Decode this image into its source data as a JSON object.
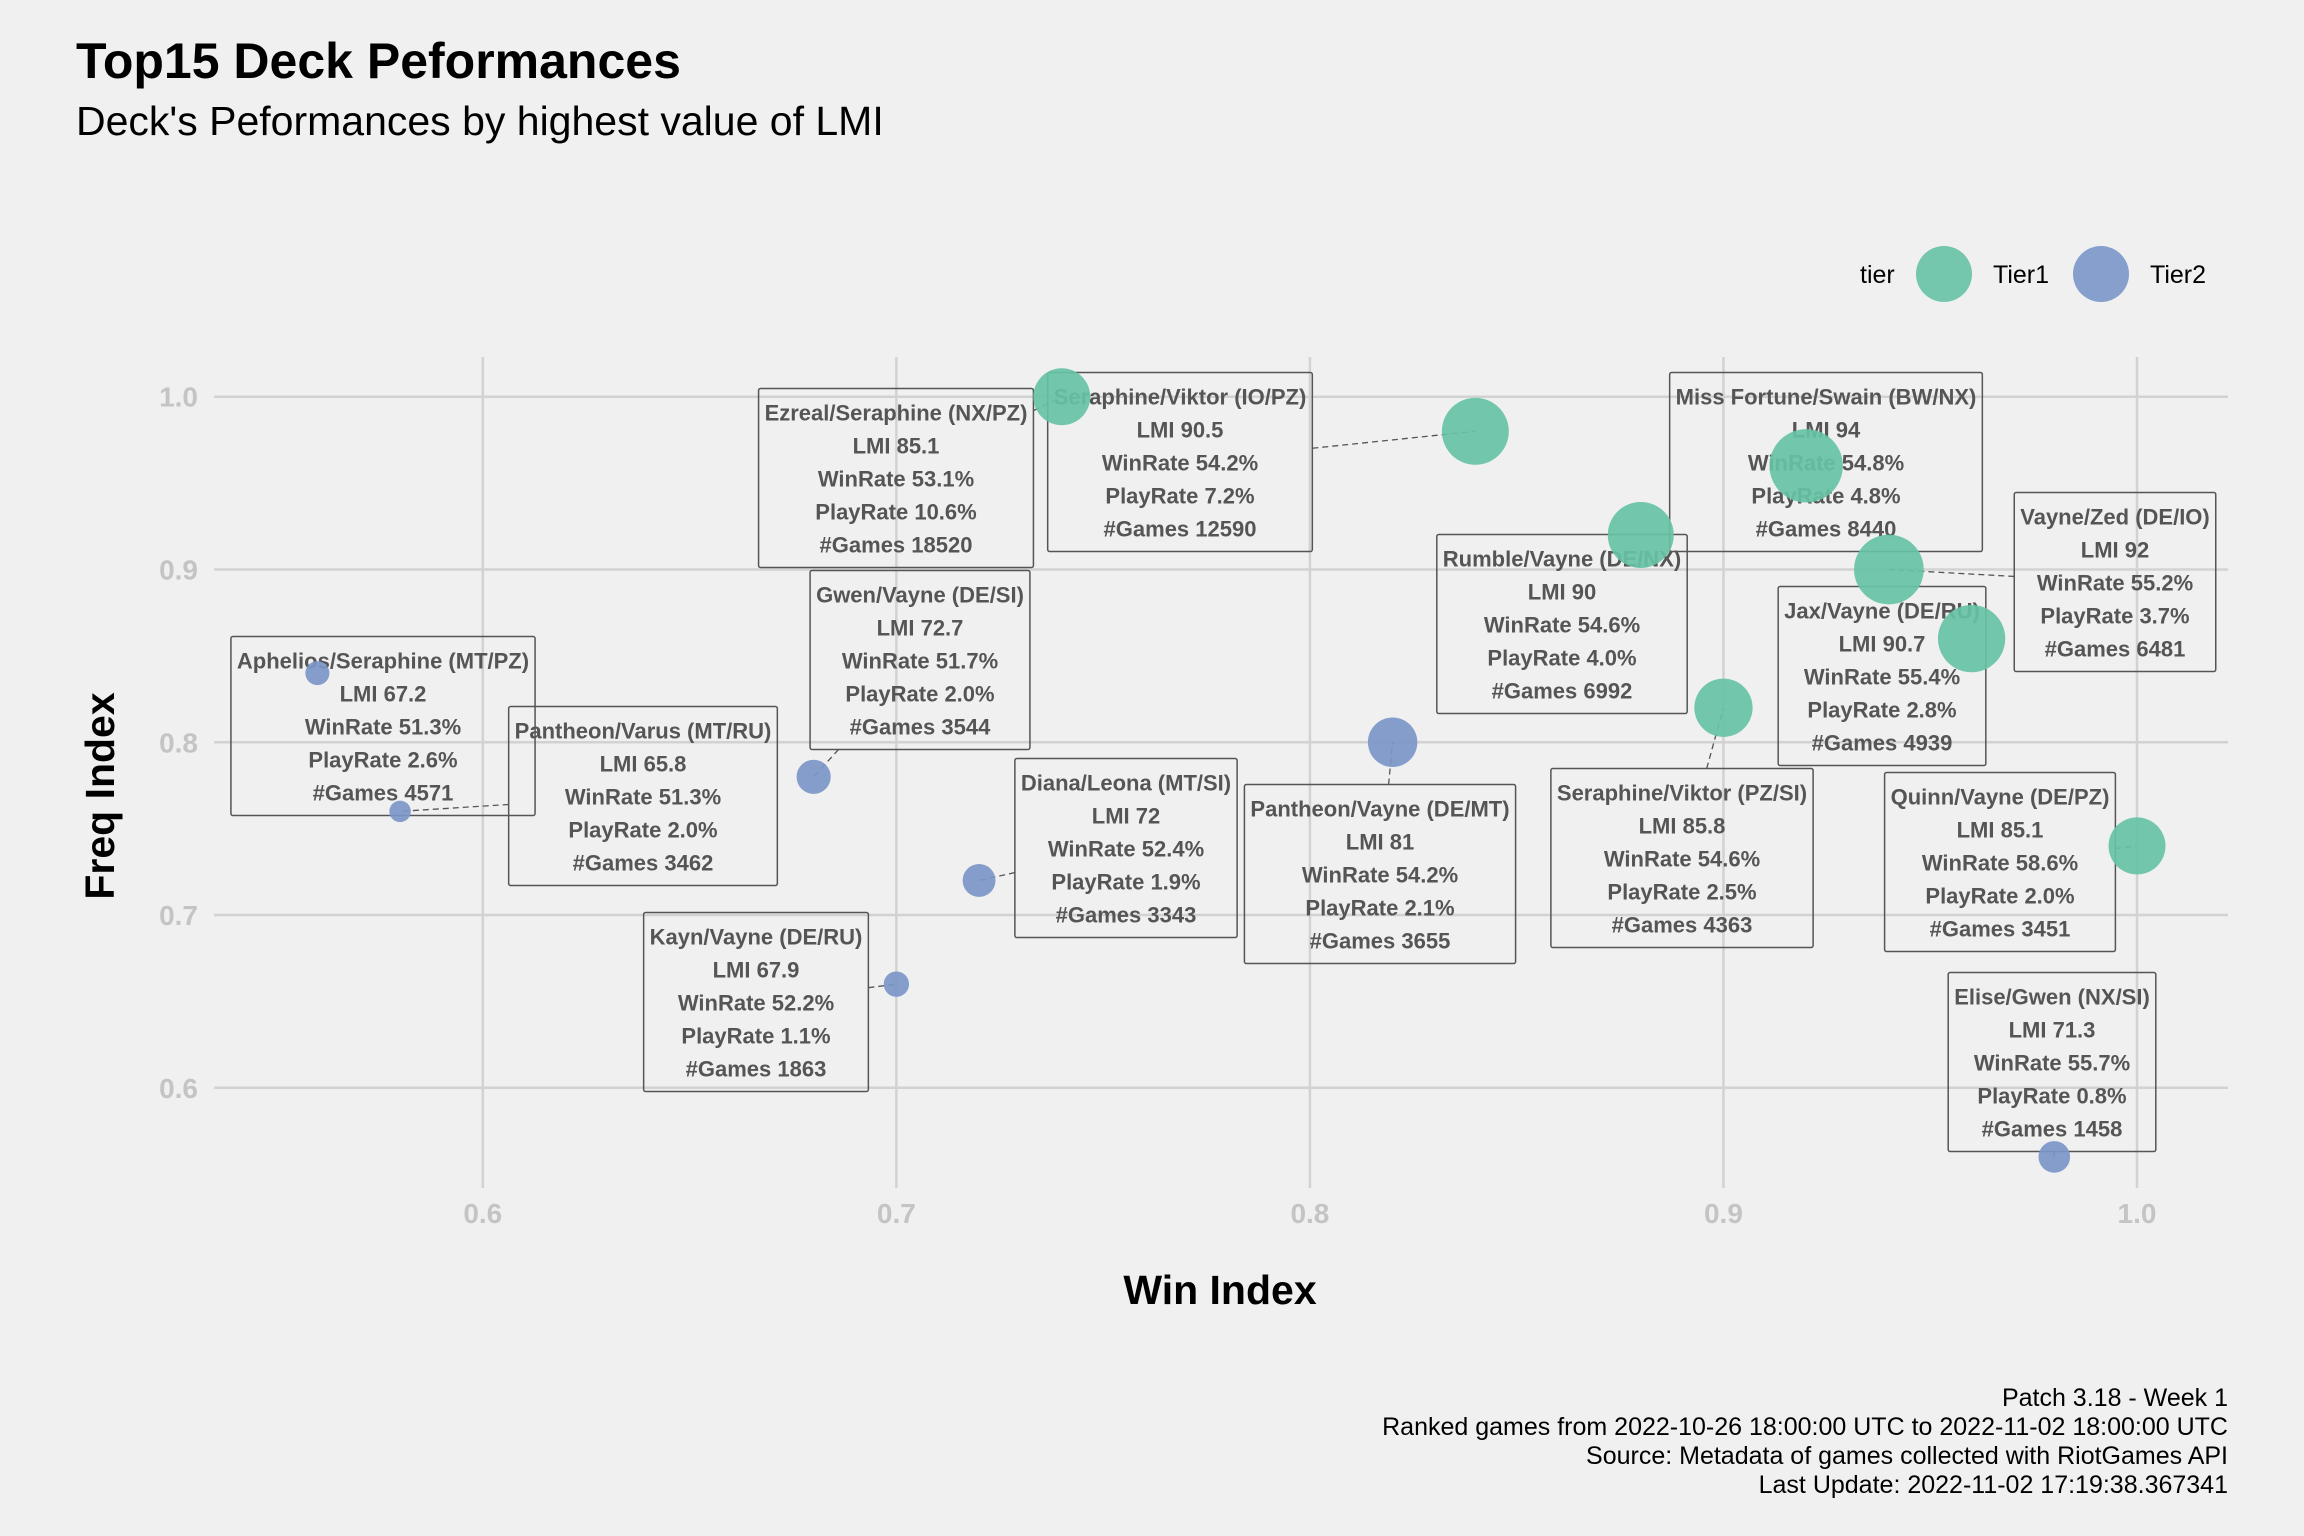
{
  "title": "Top15 Deck Peformances",
  "subtitle": "Deck's Peformances by highest value of LMI",
  "caption": [
    "Patch 3.18 - Week 1",
    "Ranked games from 2022-10-26 18:00:00 UTC to 2022-11-02 18:00:00 UTC",
    "Source: Metadata of games collected with RiotGames API",
    "Last Update: 2022-11-02 17:19:38.367341"
  ],
  "legend": {
    "title": "tier",
    "items": [
      {
        "label": "Tier1",
        "color": "#66c2a5"
      },
      {
        "label": "Tier2",
        "color": "#7b96c8"
      }
    ]
  },
  "chart_data": {
    "type": "scatter",
    "xlabel": "Win Index",
    "ylabel": "Freq Index",
    "xlim": [
      0.535,
      1.022
    ],
    "ylim": [
      0.542,
      1.023
    ],
    "x_ticks": [
      0.6,
      0.7,
      0.8,
      0.9,
      1.0
    ],
    "x_tick_labels": [
      "0.6",
      "0.7",
      "0.8",
      "0.9",
      "1.0"
    ],
    "y_ticks": [
      0.6,
      0.7,
      0.8,
      0.9,
      1.0
    ],
    "y_tick_labels": [
      "0.6",
      "0.7",
      "0.8",
      "0.9",
      "1.0"
    ],
    "grid": true,
    "legend_position": "top-right",
    "size_variable": "LMI",
    "points": [
      {
        "deck": "Ezreal/Seraphine (NX/PZ)",
        "x": 0.74,
        "y": 1.0,
        "tier": "Tier1",
        "lmi": 85.1,
        "lines": [
          "Ezreal/Seraphine (NX/PZ)",
          "LMI 85.1",
          "WinRate 53.1%",
          "PlayRate 10.6%",
          "#Games 18520"
        ]
      },
      {
        "deck": "Seraphine/Viktor (IO/PZ)",
        "x": 0.84,
        "y": 0.98,
        "tier": "Tier1",
        "lmi": 90.5,
        "lines": [
          "Seraphine/Viktor (IO/PZ)",
          "LMI 90.5",
          "WinRate 54.2%",
          "PlayRate 7.2%",
          "#Games 12590"
        ]
      },
      {
        "deck": "Miss Fortune/Swain (BW/NX)",
        "x": 0.92,
        "y": 0.96,
        "tier": "Tier1",
        "lmi": 94,
        "lines": [
          "Miss Fortune/Swain (BW/NX)",
          "LMI 94",
          "WinRate 54.8%",
          "PlayRate 4.8%",
          "#Games 8440"
        ]
      },
      {
        "deck": "Rumble/Vayne (DE/NX)",
        "x": 0.88,
        "y": 0.92,
        "tier": "Tier1",
        "lmi": 90,
        "lines": [
          "Rumble/Vayne (DE/NX)",
          "LMI 90",
          "WinRate 54.6%",
          "PlayRate 4.0%",
          "#Games 6992"
        ]
      },
      {
        "deck": "Vayne/Zed (DE/IO)",
        "x": 0.94,
        "y": 0.9,
        "tier": "Tier1",
        "lmi": 92,
        "lines": [
          "Vayne/Zed (DE/IO)",
          "LMI 92",
          "WinRate 55.2%",
          "PlayRate 3.7%",
          "#Games 6481"
        ]
      },
      {
        "deck": "Jax/Vayne (DE/RU)",
        "x": 0.96,
        "y": 0.86,
        "tier": "Tier1",
        "lmi": 90.7,
        "lines": [
          "Jax/Vayne (DE/RU)",
          "LMI 90.7",
          "WinRate 55.4%",
          "PlayRate 2.8%",
          "#Games 4939"
        ]
      },
      {
        "deck": "Seraphine/Viktor (PZ/SI)",
        "x": 0.9,
        "y": 0.82,
        "tier": "Tier1",
        "lmi": 85.8,
        "lines": [
          "Seraphine/Viktor (PZ/SI)",
          "LMI 85.8",
          "WinRate 54.6%",
          "PlayRate 2.5%",
          "#Games 4363"
        ]
      },
      {
        "deck": "Quinn/Vayne (DE/PZ)",
        "x": 1.0,
        "y": 0.74,
        "tier": "Tier1",
        "lmi": 85.1,
        "lines": [
          "Quinn/Vayne (DE/PZ)",
          "LMI 85.1",
          "WinRate 58.6%",
          "PlayRate 2.0%",
          "#Games 3451"
        ]
      },
      {
        "deck": "Pantheon/Vayne (DE/MT)",
        "x": 0.82,
        "y": 0.8,
        "tier": "Tier2",
        "lmi": 81,
        "lines": [
          "Pantheon/Vayne (DE/MT)",
          "LMI 81",
          "WinRate 54.2%",
          "PlayRate 2.1%",
          "#Games 3655"
        ]
      },
      {
        "deck": "Gwen/Vayne (DE/SI)",
        "x": 0.68,
        "y": 0.78,
        "tier": "Tier2",
        "lmi": 72.7,
        "lines": [
          "Gwen/Vayne (DE/SI)",
          "LMI 72.7",
          "WinRate 51.7%",
          "PlayRate 2.0%",
          "#Games 3544"
        ]
      },
      {
        "deck": "Diana/Leona (MT/SI)",
        "x": 0.72,
        "y": 0.72,
        "tier": "Tier2",
        "lmi": 72,
        "lines": [
          "Diana/Leona (MT/SI)",
          "LMI 72",
          "WinRate 52.4%",
          "PlayRate 1.9%",
          "#Games 3343"
        ]
      },
      {
        "deck": "Kayn/Vayne (DE/RU)",
        "x": 0.7,
        "y": 0.66,
        "tier": "Tier2",
        "lmi": 67.9,
        "lines": [
          "Kayn/Vayne (DE/RU)",
          "LMI 67.9",
          "WinRate 52.2%",
          "PlayRate 1.1%",
          "#Games 1863"
        ]
      },
      {
        "deck": "Aphelios/Seraphine (MT/PZ)",
        "x": 0.56,
        "y": 0.84,
        "tier": "Tier2",
        "lmi": 67.2,
        "lines": [
          "Aphelios/Seraphine (MT/PZ)",
          "LMI 67.2",
          "WinRate 51.3%",
          "PlayRate 2.6%",
          "#Games 4571"
        ]
      },
      {
        "deck": "Pantheon/Varus (MT/RU)",
        "x": 0.58,
        "y": 0.76,
        "tier": "Tier2",
        "lmi": 65.8,
        "lines": [
          "Pantheon/Varus (MT/RU)",
          "LMI 65.8",
          "WinRate 51.3%",
          "PlayRate 2.0%",
          "#Games 3462"
        ]
      },
      {
        "deck": "Elise/Gwen (NX/SI)",
        "x": 0.98,
        "y": 0.56,
        "tier": "Tier2",
        "lmi": 71.3,
        "lines": [
          "Elise/Gwen (NX/SI)",
          "LMI 71.3",
          "WinRate 55.7%",
          "PlayRate 0.8%",
          "#Games 1458"
        ]
      }
    ]
  }
}
